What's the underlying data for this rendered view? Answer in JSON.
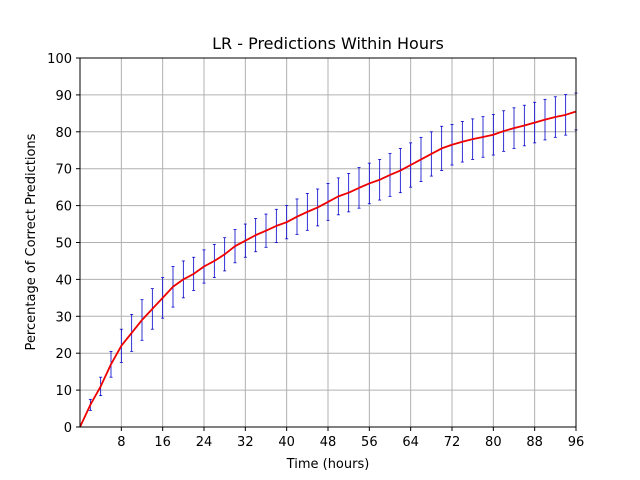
{
  "chart_data": {
    "type": "line",
    "title": "LR - Predictions Within Hours",
    "xlabel": "Time (hours)",
    "ylabel": "Percentage of Correct Predictions",
    "xlim": [
      0,
      96
    ],
    "ylim": [
      0,
      100
    ],
    "xticks": [
      8,
      16,
      24,
      32,
      40,
      48,
      56,
      64,
      72,
      80,
      88,
      96
    ],
    "yticks": [
      0,
      10,
      20,
      30,
      40,
      50,
      60,
      70,
      80,
      90,
      100
    ],
    "grid": true,
    "colors": {
      "line": "#ee0000",
      "errorbar": "#0000cc",
      "grid": "#b0b0b0"
    },
    "series": [
      {
        "x": [
          0,
          2,
          4,
          6,
          8,
          10,
          12,
          14,
          16,
          18,
          20,
          22,
          24,
          26,
          28,
          30,
          32,
          34,
          36,
          38,
          40,
          42,
          44,
          46,
          48,
          50,
          52,
          54,
          56,
          58,
          60,
          62,
          64,
          66,
          68,
          70,
          72,
          74,
          76,
          78,
          80,
          82,
          84,
          86,
          88,
          90,
          92,
          94,
          96
        ],
        "y": [
          0,
          6,
          11,
          17,
          22,
          25.5,
          29,
          32,
          35,
          38,
          40,
          41.5,
          43.5,
          45,
          46.8,
          49,
          50.5,
          52,
          53.2,
          54.5,
          55.5,
          57,
          58.3,
          59.5,
          61,
          62.5,
          63.5,
          64.8,
          66,
          67,
          68.3,
          69.5,
          71,
          72.5,
          74,
          75.5,
          76.5,
          77.3,
          78,
          78.6,
          79.2,
          80.2,
          81,
          81.7,
          82.5,
          83.3,
          84,
          84.6,
          85.5
        ],
        "yerr": [
          0,
          1.5,
          2.5,
          3.5,
          4.5,
          5,
          5.5,
          5.5,
          5.5,
          5.5,
          5,
          4.5,
          4.5,
          4.5,
          4.5,
          4.5,
          4.5,
          4.5,
          4.5,
          4.5,
          4.5,
          4.8,
          5,
          5,
          5,
          5,
          5.2,
          5.5,
          5.5,
          5.5,
          5.8,
          6,
          6,
          6,
          6,
          6,
          5.5,
          5.5,
          5.5,
          5.5,
          5.5,
          5.5,
          5.5,
          5.5,
          5.5,
          5.5,
          5.5,
          5.5,
          5
        ]
      }
    ]
  }
}
